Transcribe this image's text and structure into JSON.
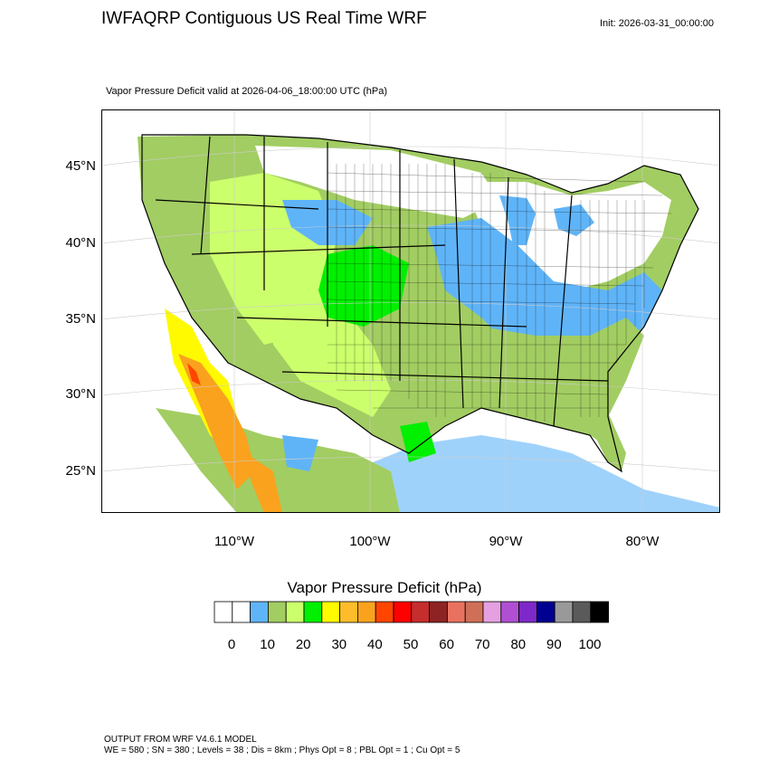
{
  "header": {
    "title": "IWFAQRP Contiguous US Real Time WRF",
    "init": "Init: 2026-03-31_00:00:00",
    "subtitle": "Vapor Pressure Deficit valid at 2026-04-06_18:00:00 UTC   (hPa)"
  },
  "map": {
    "lat_labels": [
      "45°N",
      "40°N",
      "35°N",
      "30°N",
      "25°N"
    ],
    "lon_labels": [
      "110°W",
      "100°W",
      "90°W",
      "80°W"
    ]
  },
  "colorbar": {
    "title": "Vapor Pressure Deficit  (hPa)",
    "colors": [
      "#ffffff",
      "#ffffff",
      "#5fb4f8",
      "#a2cd62",
      "#ccff6c",
      "#00f000",
      "#fffa00",
      "#fdbd2a",
      "#faa21e",
      "#ff4500",
      "#ff0000",
      "#c62d2d",
      "#8e2323",
      "#e8725f",
      "#cf6f58",
      "#e4a0e0",
      "#b04fd1",
      "#7d28c8",
      "#000090",
      "#999999",
      "#5a5a5a",
      "#000000"
    ],
    "labels": [
      "0",
      "10",
      "20",
      "30",
      "40",
      "50",
      "60",
      "70",
      "80",
      "90",
      "100"
    ]
  },
  "legend_colors": {
    "land_green": "#a2cd62",
    "land_light": "#ccff6c",
    "bright_green": "#00f000",
    "blue": "#5fb4f8",
    "yellow": "#fffa00",
    "orange": "#faa21e",
    "red": "#ff4500"
  },
  "footer": {
    "line1": "OUTPUT FROM WRF V4.6.1 MODEL",
    "line2": "WE = 580 ; SN = 380 ; Levels = 38 ; Dis = 8km ; Phys Opt = 8 ; PBL Opt = 1 ; Cu Opt = 5"
  }
}
